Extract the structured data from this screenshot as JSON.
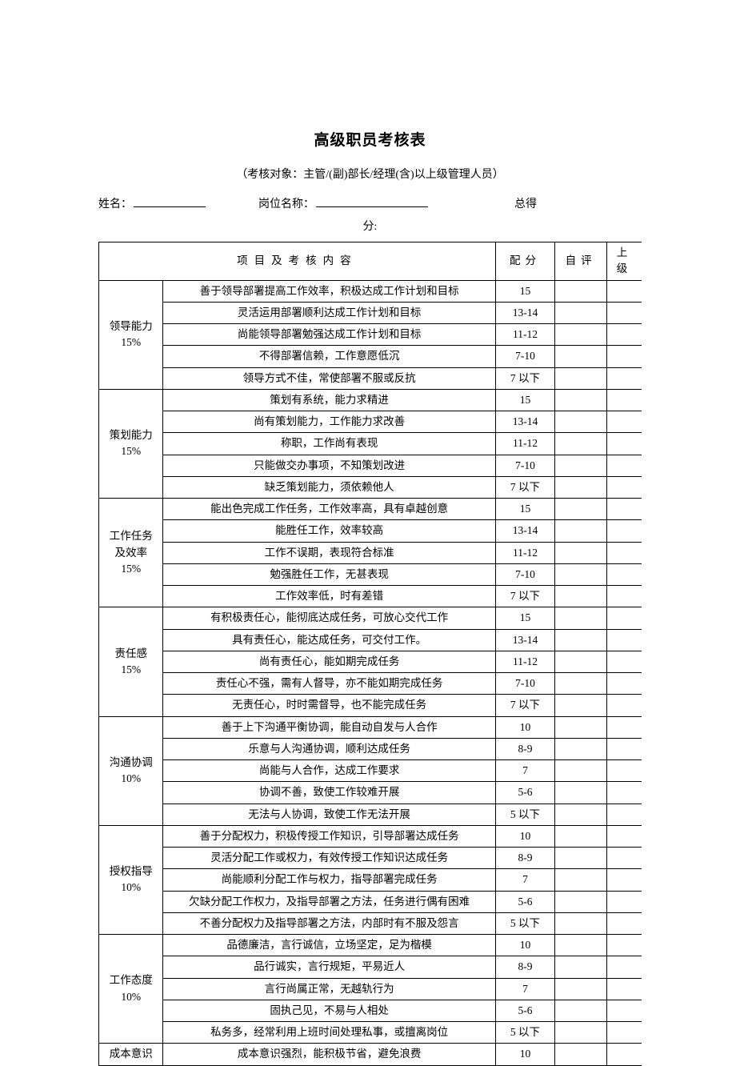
{
  "title": "高级职员考核表",
  "subtitle": "（考核对象：主管/(副)部长/经理(含)以上级管理人员）",
  "form": {
    "name_label": "姓名：",
    "position_label": "岗位名称：",
    "total_label": "总得",
    "score_label": "分:"
  },
  "headers": {
    "content": "项目及考核内容",
    "score": "配分",
    "self": "自评",
    "upper": "上级"
  },
  "categories": [
    {
      "name": "领导能力",
      "weight": "15%",
      "items": [
        {
          "text": "善于领导部署提高工作效率，积极达成工作计划和目标",
          "score": "15"
        },
        {
          "text": "灵活运用部署顺利达成工作计划和目标",
          "score": "13-14"
        },
        {
          "text": "尚能领导部署勉强达成工作计划和目标",
          "score": "11-12"
        },
        {
          "text": "不得部署信赖，工作意愿低沉",
          "score": "7-10"
        },
        {
          "text": "领导方式不佳，常使部署不服或反抗",
          "score": "7 以下"
        }
      ]
    },
    {
      "name": "策划能力",
      "weight": "15%",
      "items": [
        {
          "text": "策划有系统，能力求精进",
          "score": "15"
        },
        {
          "text": "尚有策划能力，工作能力求改善",
          "score": "13-14"
        },
        {
          "text": "称职，工作尚有表现",
          "score": "11-12"
        },
        {
          "text": "只能做交办事项，不知策划改进",
          "score": "7-10"
        },
        {
          "text": "缺乏策划能力，须依赖他人",
          "score": "7 以下"
        }
      ]
    },
    {
      "name": "工作任务",
      "name2": "及效率",
      "weight": "15%",
      "items": [
        {
          "text": "能出色完成工作任务，工作效率高，具有卓越创意",
          "score": "15"
        },
        {
          "text": "能胜任工作，效率较高",
          "score": "13-14"
        },
        {
          "text": "工作不误期，表现符合标准",
          "score": "11-12"
        },
        {
          "text": "勉强胜任工作，无甚表现",
          "score": "7-10"
        },
        {
          "text": "工作效率低，时有差错",
          "score": "7 以下"
        }
      ]
    },
    {
      "name": "责任感",
      "weight": "15%",
      "items": [
        {
          "text": "有积极责任心，能彻底达成任务，可放心交代工作",
          "score": "15"
        },
        {
          "text": "具有责任心，能达成任务，可交付工作。",
          "score": "13-14"
        },
        {
          "text": "尚有责任心，能如期完成任务",
          "score": "11-12"
        },
        {
          "text": "责任心不强，需有人督导，亦不能如期完成任务",
          "score": "7-10"
        },
        {
          "text": "无责任心，时时需督导，也不能完成任务",
          "score": "7 以下"
        }
      ]
    },
    {
      "name": "沟通协调",
      "weight": "10%",
      "items": [
        {
          "text": "善于上下沟通平衡协调，能自动自发与人合作",
          "score": "10"
        },
        {
          "text": "乐意与人沟通协调，顺利达成任务",
          "score": "8-9"
        },
        {
          "text": "尚能与人合作，达成工作要求",
          "score": "7"
        },
        {
          "text": "协调不善，致使工作较难开展",
          "score": "5-6"
        },
        {
          "text": "无法与人协调，致使工作无法开展",
          "score": "5 以下"
        }
      ]
    },
    {
      "name": "授权指导",
      "weight": "10%",
      "items": [
        {
          "text": "善于分配权力，积极传授工作知识，引导部署达成任务",
          "score": "10"
        },
        {
          "text": "灵活分配工作或权力，有效传授工作知识达成任务",
          "score": "8-9"
        },
        {
          "text": "尚能顺利分配工作与权力，指导部署完成任务",
          "score": "7"
        },
        {
          "text": "欠缺分配工作权力，及指导部署之方法，任务进行偶有困难",
          "score": "5-6"
        },
        {
          "text": "不善分配权力及指导部署之方法，内部时有不服及怨言",
          "score": "5 以下"
        }
      ]
    },
    {
      "name": "工作态度",
      "weight": "10%",
      "items": [
        {
          "text": "品德廉洁，言行诚信，立场坚定，足为楷模",
          "score": "10"
        },
        {
          "text": "品行诚实，言行规矩，平易近人",
          "score": "8-9"
        },
        {
          "text": "言行尚属正常，无越轨行为",
          "score": "7"
        },
        {
          "text": "固执己见，不易与人相处",
          "score": "5-6"
        },
        {
          "text": "私务多，经常利用上班时间处理私事，或擅离岗位",
          "score": "5 以下"
        }
      ]
    },
    {
      "name": "成本意识",
      "weight": "",
      "items": [
        {
          "text": "成本意识强烈，能积极节省，避免浪费",
          "score": "10"
        }
      ]
    }
  ]
}
